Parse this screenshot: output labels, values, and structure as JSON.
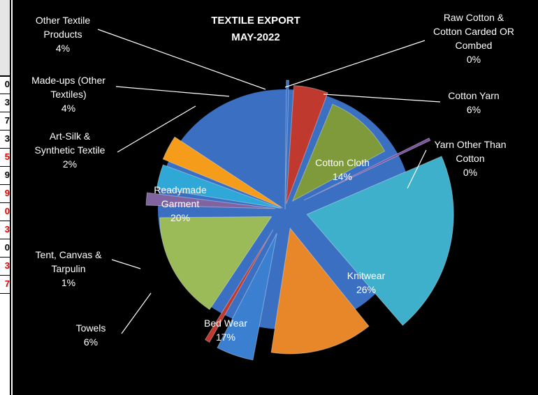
{
  "colors": {
    "background": "#000000",
    "pie_base": "#3b6fc1",
    "label_text": "#ffffff"
  },
  "chart_data": {
    "type": "pie",
    "title_lines": [
      "TEXTILE EXPORT",
      "MAY-2022"
    ],
    "legend": "none",
    "slices": [
      {
        "name": "Raw Cotton & Cotton Carded OR Combed",
        "label_lines": [
          "Raw Cotton &",
          "Cotton Carded OR",
          "Combed"
        ],
        "pct_text": "0%",
        "value": 0.4,
        "color": "#3b6fc1"
      },
      {
        "name": "Cotton Yarn",
        "label_lines": [
          "Cotton Yarn"
        ],
        "pct_text": "6%",
        "value": 6,
        "color": "#c0392f"
      },
      {
        "name": "Cotton Cloth",
        "label_lines": [
          "Cotton Cloth"
        ],
        "pct_text": "14%",
        "value": 14,
        "color": "#7f9a3a"
      },
      {
        "name": "Yarn Other Than Cotton",
        "label_lines": [
          "Yarn Other Than",
          "Cotton"
        ],
        "pct_text": "0%",
        "value": 0.4,
        "color": "#7a4fa0"
      },
      {
        "name": "Knitwear",
        "label_lines": [
          "Knitwear"
        ],
        "pct_text": "26%",
        "value": 26,
        "color": "#3fb0cc"
      },
      {
        "name": "Bed Wear",
        "label_lines": [
          "Bed Wear"
        ],
        "pct_text": "17%",
        "value": 17,
        "color": "#e8862a"
      },
      {
        "name": "Towels",
        "label_lines": [
          "Towels"
        ],
        "pct_text": "6%",
        "value": 6,
        "color": "#3b80d0"
      },
      {
        "name": "Tent, Canvas & Tarpulin",
        "label_lines": [
          "Tent, Canvas &",
          "Tarpulin"
        ],
        "pct_text": "1%",
        "value": 0.8,
        "color": "#c0392f"
      },
      {
        "name": "Readymade Garment",
        "label_lines": [
          "Readymade",
          "Garment"
        ],
        "pct_text": "20%",
        "value": 20,
        "color": "#9bbb59"
      },
      {
        "name": "Art-Silk & Synthetic Textile",
        "label_lines": [
          "Art-Silk &",
          "Synthetic Textile"
        ],
        "pct_text": "2%",
        "value": 2,
        "color": "#8064a2"
      },
      {
        "name": "Made-ups (Other Textiles)",
        "label_lines": [
          "Made-ups (Other",
          "Textiles)"
        ],
        "pct_text": "4%",
        "value": 4,
        "color": "#2fa8d8"
      },
      {
        "name": "Other Textile Products",
        "label_lines": [
          "Other Textile",
          "Products"
        ],
        "pct_text": "4%",
        "value": 4,
        "color": "#f59c1a"
      }
    ]
  },
  "left_table": {
    "cells": [
      "0",
      "3",
      "7",
      "3",
      "5",
      "9",
      "9",
      "0",
      "3",
      "0",
      "3",
      "7"
    ],
    "red_flags": [
      false,
      false,
      false,
      false,
      true,
      false,
      true,
      true,
      true,
      false,
      true,
      true
    ]
  }
}
